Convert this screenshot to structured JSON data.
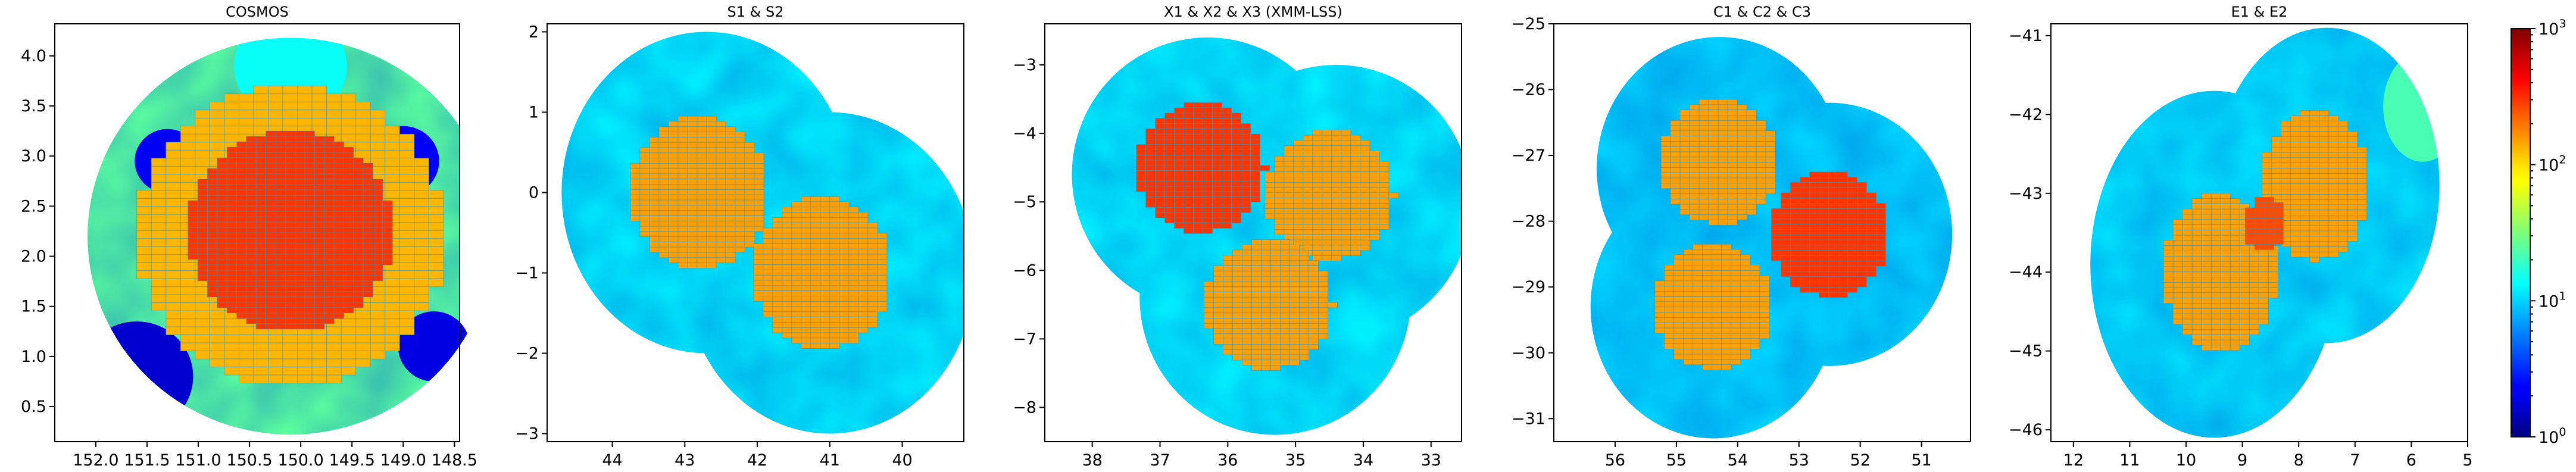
{
  "chart_data": {
    "type": "heatmap",
    "colorbar": {
      "colormap": "jet",
      "scale": "log",
      "range": [
        1,
        1000
      ],
      "tick_bases": [
        "10",
        "10",
        "10",
        "10"
      ],
      "tick_exponents": [
        "0",
        "1",
        "2",
        "3"
      ]
    },
    "panels": [
      {
        "title": "COSMOS",
        "xlim": [
          152.4,
          148.45
        ],
        "ylim": [
          0.15,
          4.32
        ],
        "xticks": [
          {
            "v": 152.0,
            "label": "152.0"
          },
          {
            "v": 151.5,
            "label": "151.5"
          },
          {
            "v": 151.0,
            "label": "151.0"
          },
          {
            "v": 150.5,
            "label": "150.5"
          },
          {
            "v": 150.0,
            "label": "150.0"
          },
          {
            "v": 149.5,
            "label": "149.5"
          },
          {
            "v": 149.0,
            "label": "149.0"
          },
          {
            "v": 148.5,
            "label": "148.5"
          }
        ],
        "yticks": [
          {
            "v": 0.5,
            "label": "0.5"
          },
          {
            "v": 1.0,
            "label": "1.0"
          },
          {
            "v": 1.5,
            "label": "1.5"
          },
          {
            "v": 2.0,
            "label": "2.0"
          },
          {
            "v": 2.5,
            "label": "2.5"
          },
          {
            "v": 3.0,
            "label": "3.0"
          },
          {
            "v": 3.5,
            "label": "3.5"
          },
          {
            "v": 4.0,
            "label": "4.0"
          }
        ],
        "background_value": 25,
        "footprint_circles": [
          {
            "x": 150.1,
            "y": 2.2,
            "r": 1.98,
            "value": 25
          }
        ],
        "patches": [
          {
            "x": 151.3,
            "y": 2.95,
            "r": 0.32,
            "value": 2
          },
          {
            "x": 149.0,
            "y": 2.95,
            "r": 0.35,
            "value": 2
          },
          {
            "x": 151.6,
            "y": 0.8,
            "r": 0.55,
            "value": 1.6
          },
          {
            "x": 148.7,
            "y": 1.1,
            "r": 0.35,
            "value": 1.8
          },
          {
            "x": 150.1,
            "y": 3.9,
            "r": 0.55,
            "value": 14
          }
        ],
        "tiled_regions": [
          {
            "x": 150.1,
            "y": 2.2,
            "r": 1.5,
            "value": 130
          },
          {
            "x": 150.1,
            "y": 2.25,
            "r": 1.0,
            "value": 300
          }
        ]
      },
      {
        "title": "S1 & S2",
        "xlim": [
          44.9,
          39.15
        ],
        "ylim": [
          -3.1,
          2.1
        ],
        "xticks": [
          {
            "v": 44,
            "label": "44"
          },
          {
            "v": 43,
            "label": "43"
          },
          {
            "v": 42,
            "label": "42"
          },
          {
            "v": 41,
            "label": "41"
          },
          {
            "v": 40,
            "label": "40"
          }
        ],
        "yticks": [
          {
            "v": 2,
            "label": "2"
          },
          {
            "v": 1,
            "label": "1"
          },
          {
            "v": 0,
            "label": "0"
          },
          {
            "v": -1,
            "label": "−1"
          },
          {
            "v": -2,
            "label": "−2"
          },
          {
            "v": -3,
            "label": "−3"
          }
        ],
        "background_value": 12,
        "footprint_circles": [
          {
            "x": 42.7,
            "y": 0.0,
            "r": 2.0,
            "value": 12
          },
          {
            "x": 41.0,
            "y": -1.0,
            "r": 2.0,
            "value": 12
          }
        ],
        "patches": [],
        "tiled_regions": [
          {
            "x": 42.8,
            "y": 0.0,
            "r": 0.95,
            "value": 150
          },
          {
            "x": 41.1,
            "y": -1.0,
            "r": 0.95,
            "value": 150
          }
        ]
      },
      {
        "title": "X1 & X2 & X3 (XMM-LSS)",
        "xlim": [
          38.7,
          32.55
        ],
        "ylim": [
          -8.5,
          -2.4
        ],
        "xticks": [
          {
            "v": 38,
            "label": "38"
          },
          {
            "v": 37,
            "label": "37"
          },
          {
            "v": 36,
            "label": "36"
          },
          {
            "v": 35,
            "label": "35"
          },
          {
            "v": 34,
            "label": "34"
          },
          {
            "v": 33,
            "label": "33"
          }
        ],
        "yticks": [
          {
            "v": -3,
            "label": "−3"
          },
          {
            "v": -4,
            "label": "−4"
          },
          {
            "v": -5,
            "label": "−5"
          },
          {
            "v": -6,
            "label": "−6"
          },
          {
            "v": -7,
            "label": "−7"
          },
          {
            "v": -8,
            "label": "−8"
          }
        ],
        "background_value": 12,
        "footprint_circles": [
          {
            "x": 36.3,
            "y": -4.6,
            "r": 2.0,
            "value": 12
          },
          {
            "x": 34.4,
            "y": -5.0,
            "r": 2.0,
            "value": 12
          },
          {
            "x": 35.3,
            "y": -6.4,
            "r": 2.0,
            "value": 12
          }
        ],
        "patches": [],
        "tiled_regions": [
          {
            "x": 34.5,
            "y": -4.9,
            "r": 0.95,
            "value": 150
          },
          {
            "x": 35.4,
            "y": -6.5,
            "r": 0.95,
            "value": 150
          },
          {
            "x": 36.4,
            "y": -4.5,
            "r": 0.95,
            "value": 300
          }
        ]
      },
      {
        "title": "C1 & C2 & C3",
        "xlim": [
          57.0,
          50.2
        ],
        "ylim": [
          -31.35,
          -25.0
        ],
        "xticks": [
          {
            "v": 56,
            "label": "56"
          },
          {
            "v": 55,
            "label": "55"
          },
          {
            "v": 54,
            "label": "54"
          },
          {
            "v": 53,
            "label": "53"
          },
          {
            "v": 52,
            "label": "52"
          },
          {
            "v": 51,
            "label": "51"
          }
        ],
        "yticks": [
          {
            "v": -25,
            "label": "−25"
          },
          {
            "v": -26,
            "label": "−26"
          },
          {
            "v": -27,
            "label": "−27"
          },
          {
            "v": -28,
            "label": "−28"
          },
          {
            "v": -29,
            "label": "−29"
          },
          {
            "v": -30,
            "label": "−30"
          },
          {
            "v": -31,
            "label": "−31"
          }
        ],
        "background_value": 10,
        "footprint_circles": [
          {
            "x": 54.3,
            "y": -27.2,
            "r": 2.0,
            "value": 10
          },
          {
            "x": 52.5,
            "y": -28.2,
            "r": 2.0,
            "value": 10
          },
          {
            "x": 54.4,
            "y": -29.3,
            "r": 2.0,
            "value": 10
          }
        ],
        "patches": [],
        "tiled_regions": [
          {
            "x": 54.3,
            "y": -27.1,
            "r": 0.95,
            "value": 150
          },
          {
            "x": 54.4,
            "y": -29.3,
            "r": 0.95,
            "value": 150
          },
          {
            "x": 52.5,
            "y": -28.2,
            "r": 0.95,
            "value": 300
          }
        ]
      },
      {
        "title": "E1 & E2",
        "xlim": [
          12.4,
          5.0
        ],
        "ylim": [
          -46.15,
          -40.85
        ],
        "xticks": [
          {
            "v": 12,
            "label": "12"
          },
          {
            "v": 11,
            "label": "11"
          },
          {
            "v": 10,
            "label": "10"
          },
          {
            "v": 9,
            "label": "9"
          },
          {
            "v": 8,
            "label": "8"
          },
          {
            "v": 7,
            "label": "7"
          },
          {
            "v": 6,
            "label": "6"
          },
          {
            "v": 5,
            "label": "5"
          }
        ],
        "yticks": [
          {
            "v": -41,
            "label": "−41"
          },
          {
            "v": -42,
            "label": "−42"
          },
          {
            "v": -43,
            "label": "−43"
          },
          {
            "v": -44,
            "label": "−44"
          },
          {
            "v": -45,
            "label": "−45"
          },
          {
            "v": -46,
            "label": "−46"
          }
        ],
        "background_value": 11,
        "footprint_circles": [
          {
            "x": 9.5,
            "y": -43.9,
            "r": 2.2,
            "value": 11
          },
          {
            "x": 7.5,
            "y": -42.9,
            "r": 2.0,
            "value": 11
          }
        ],
        "patches": [
          {
            "x": 5.8,
            "y": -41.9,
            "r": 0.7,
            "value": 22
          }
        ],
        "tiled_regions": [
          {
            "x": 9.4,
            "y": -44.0,
            "r": 1.0,
            "value": 150
          },
          {
            "x": 7.7,
            "y": -42.9,
            "r": 0.95,
            "value": 150
          },
          {
            "x": 8.6,
            "y": -43.4,
            "r": 0.35,
            "value": 260
          }
        ]
      }
    ]
  }
}
